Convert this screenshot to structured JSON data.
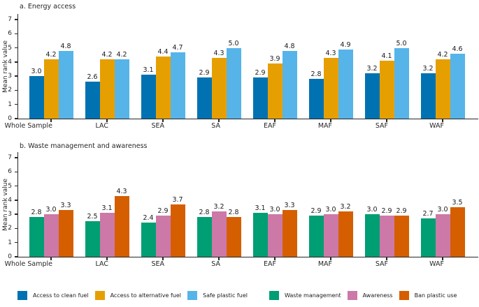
{
  "figure": {
    "background": "#ffffff",
    "axis_color": "#262626",
    "text_color": "#1a1a1a"
  },
  "chart_data": [
    {
      "type": "bar",
      "title": "a. Energy access",
      "xlabel": "",
      "ylabel": "Mean rank value",
      "ylim": [
        0,
        7.4
      ],
      "yticks": [
        0,
        1,
        2,
        3,
        4,
        5,
        6,
        7
      ],
      "grid": false,
      "bar_labels": true,
      "legend_position": "bottom",
      "categories": [
        "Whole Sample",
        "LAC",
        "SEA",
        "SA",
        "EAF",
        "MAF",
        "SAF",
        "WAF"
      ],
      "series": [
        {
          "name": "Access to clean fuel",
          "color": "#0072B2",
          "values": [
            3.0,
            2.6,
            3.1,
            2.9,
            2.9,
            2.8,
            3.2,
            3.2
          ]
        },
        {
          "name": "Access to alternative fuel",
          "color": "#E69F00",
          "values": [
            4.2,
            4.2,
            4.4,
            4.3,
            3.9,
            4.3,
            4.1,
            4.2
          ]
        },
        {
          "name": "Safe plastic fuel",
          "color": "#56B4E9",
          "values": [
            4.8,
            4.2,
            4.7,
            5.0,
            4.8,
            4.9,
            5.0,
            4.6
          ]
        }
      ]
    },
    {
      "type": "bar",
      "title": "b. Waste management and awareness",
      "xlabel": "",
      "ylabel": "Mean rank value",
      "ylim": [
        0,
        7.4
      ],
      "yticks": [
        0,
        1,
        2,
        3,
        4,
        5,
        6,
        7
      ],
      "grid": false,
      "bar_labels": true,
      "legend_position": "bottom",
      "categories": [
        "Whole Sample",
        "LAC",
        "SEA",
        "SA",
        "EAF",
        "MAF",
        "SAF",
        "WAF"
      ],
      "series": [
        {
          "name": "Waste management",
          "color": "#009E73",
          "values": [
            2.8,
            2.5,
            2.4,
            2.8,
            3.1,
            2.9,
            3.0,
            2.7
          ]
        },
        {
          "name": "Awareness",
          "color": "#CC79A7",
          "values": [
            3.0,
            3.1,
            2.9,
            3.2,
            3.0,
            3.0,
            2.9,
            3.0
          ]
        },
        {
          "name": "Ban plastic use",
          "color": "#D55E00",
          "values": [
            3.3,
            4.3,
            3.7,
            2.8,
            3.3,
            3.2,
            2.9,
            3.5
          ]
        }
      ]
    }
  ],
  "legend": {
    "items": [
      {
        "label": "Access to clean fuel",
        "color": "#0072B2"
      },
      {
        "label": "Access to alternative fuel",
        "color": "#E69F00"
      },
      {
        "label": "Safe plastic fuel",
        "color": "#56B4E9"
      },
      {
        "label": "Waste management",
        "color": "#009E73"
      },
      {
        "label": "Awareness",
        "color": "#CC79A7"
      },
      {
        "label": "Ban plastic use",
        "color": "#D55E00"
      }
    ]
  }
}
